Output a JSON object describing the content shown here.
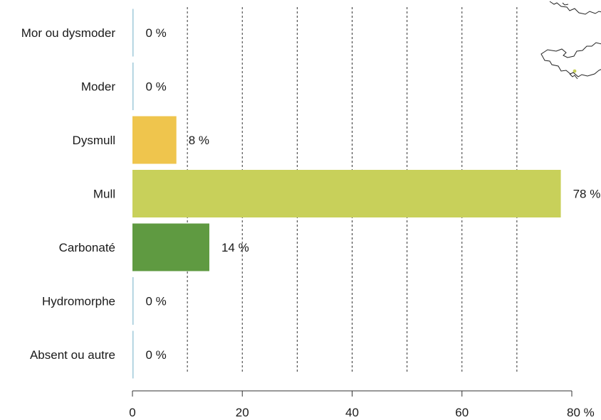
{
  "chart_data": {
    "type": "bar",
    "orientation": "horizontal",
    "categories": [
      "Mor ou dysmoder",
      "Moder",
      "Dysmull",
      "Mull",
      "Carbonaté",
      "Hydromorphe",
      "Absent ou autre"
    ],
    "values": [
      0,
      0,
      8,
      78,
      14,
      0,
      0
    ],
    "value_labels": [
      "0 %",
      "0 %",
      "8 %",
      "78 %",
      "14 %",
      "0 %",
      "0 %"
    ],
    "colors": [
      "#9fc9d9",
      "#9fc9d9",
      "#efc54d",
      "#c8d05a",
      "#5f9a41",
      "#9fc9d9",
      "#9fc9d9"
    ],
    "xlim": [
      0,
      80
    ],
    "x_ticks": [
      0,
      20,
      40,
      60,
      80
    ],
    "x_tick_labels": [
      "0",
      "20",
      "40",
      "60",
      "80 %"
    ],
    "grid_lines": [
      10,
      20,
      30,
      40,
      50,
      60,
      70
    ],
    "grid": true,
    "title": "",
    "xlabel": "",
    "ylabel": ""
  },
  "map": {
    "icon": "map-outline-icon",
    "highlight_color": "#c8d05a"
  }
}
